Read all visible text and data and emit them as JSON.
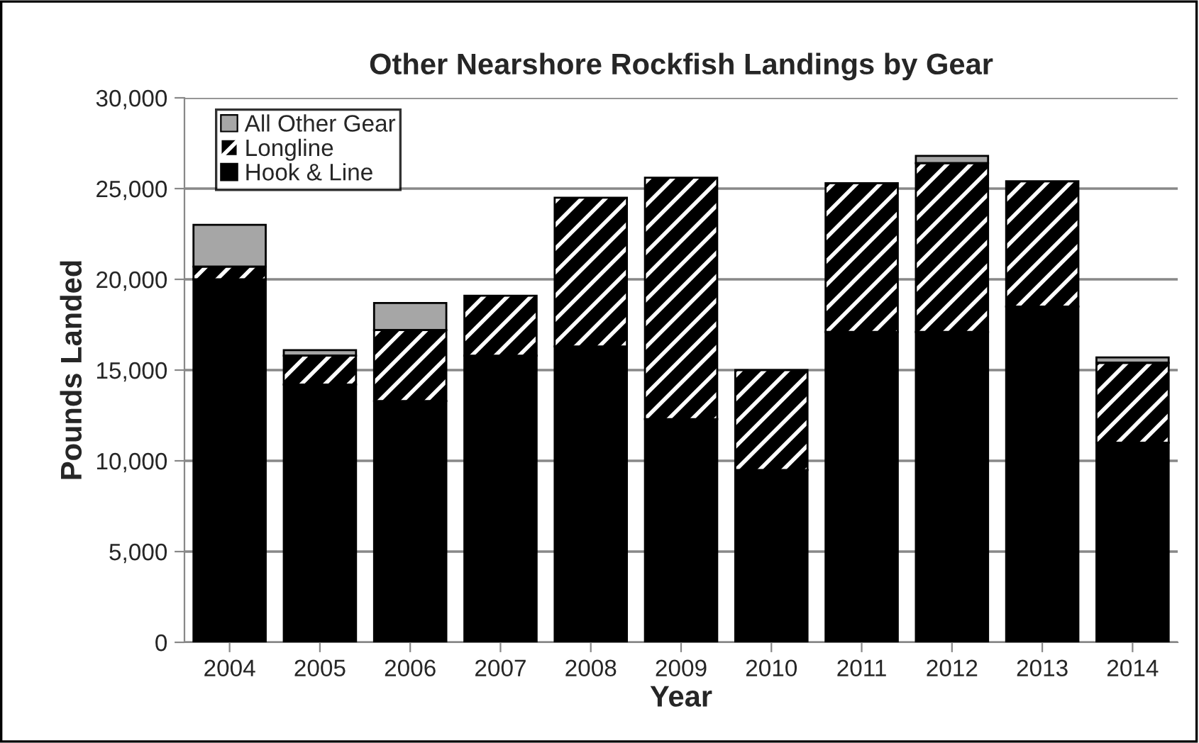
{
  "chart_data": {
    "type": "bar",
    "title": "Other Nearshore Rockfish Landings by Gear",
    "xlabel": "Year",
    "ylabel": "Pounds Landed",
    "categories": [
      "2004",
      "2005",
      "2006",
      "2007",
      "2008",
      "2009",
      "2010",
      "2011",
      "2012",
      "2013",
      "2014"
    ],
    "stacked": true,
    "series": [
      {
        "name": "Hook & Line",
        "color": "#000000",
        "values": [
          20000,
          14200,
          13300,
          15800,
          16300,
          12300,
          9500,
          17100,
          17100,
          18500,
          11000
        ]
      },
      {
        "name": "Longline",
        "color": "#000000",
        "values": [
          700,
          1600,
          3900,
          3300,
          8200,
          13300,
          5500,
          8200,
          9300,
          6900,
          4400
        ]
      },
      {
        "name": "All Other Gear",
        "color": "#a6a6a6",
        "values": [
          2300,
          300,
          1500,
          null,
          null,
          null,
          null,
          null,
          400,
          null,
          300
        ]
      }
    ],
    "ylim": [
      0,
      30000
    ],
    "yticks": [
      {
        "value": 0,
        "label": "0"
      },
      {
        "value": 5000,
        "label": "5,000"
      },
      {
        "value": 10000,
        "label": "10,000"
      },
      {
        "value": 15000,
        "label": "15,000"
      },
      {
        "value": 20000,
        "label": "20,000"
      },
      {
        "value": 25000,
        "label": "25,000"
      },
      {
        "value": 30000,
        "label": "30,000"
      }
    ],
    "grid": "y",
    "legend": "top left"
  }
}
